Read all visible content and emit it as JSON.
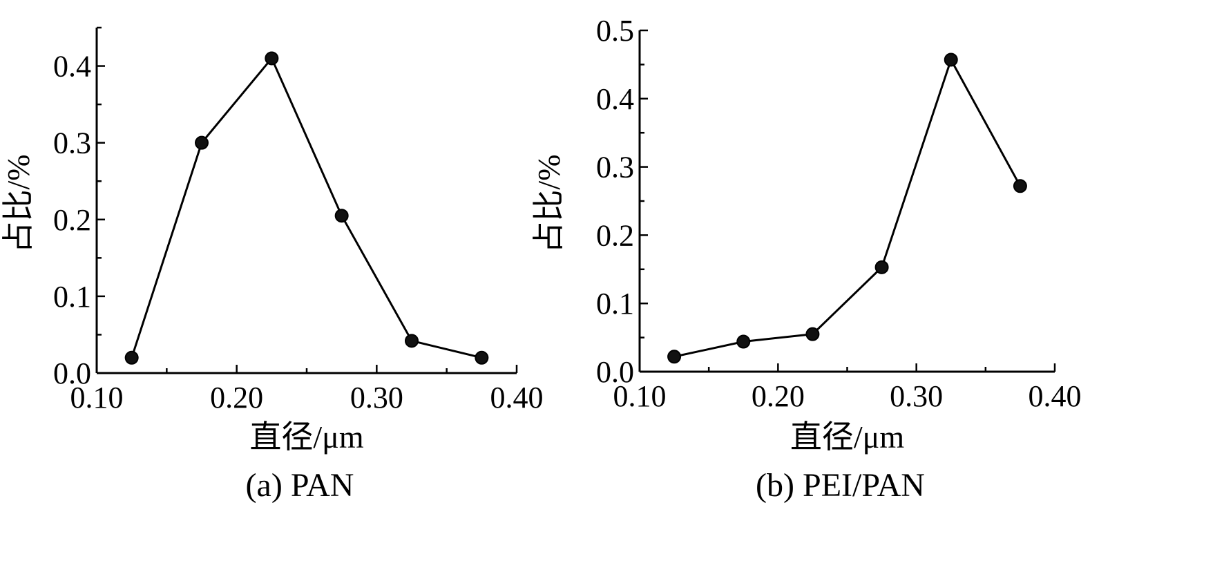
{
  "chart_data": [
    {
      "type": "line",
      "caption": "(a) PAN",
      "xlabel": "直径/μm",
      "ylabel": "占比/%",
      "xlim": [
        0.1,
        0.4
      ],
      "ylim": [
        0.0,
        0.45
      ],
      "xticks": [
        "0.10",
        "0.20",
        "0.30",
        "0.40"
      ],
      "yticks": [
        "0.0",
        "0.1",
        "0.2",
        "0.3",
        "0.4"
      ],
      "x": [
        0.125,
        0.175,
        0.225,
        0.275,
        0.325,
        0.375
      ],
      "y": [
        0.02,
        0.3,
        0.41,
        0.205,
        0.042,
        0.02
      ],
      "color": "#000000",
      "marker": "circle",
      "grid": false
    },
    {
      "type": "line",
      "caption": "(b) PEI/PAN",
      "xlabel": "直径/μm",
      "ylabel": "占比/%",
      "xlim": [
        0.1,
        0.4
      ],
      "ylim": [
        0.0,
        0.5
      ],
      "xticks": [
        "0.10",
        "0.20",
        "0.30",
        "0.40"
      ],
      "yticks": [
        "0.0",
        "0.1",
        "0.2",
        "0.3",
        "0.4",
        "0.5"
      ],
      "x": [
        0.125,
        0.175,
        0.225,
        0.275,
        0.325,
        0.375
      ],
      "y": [
        0.022,
        0.044,
        0.055,
        0.153,
        0.457,
        0.272
      ],
      "color": "#000000",
      "marker": "circle",
      "grid": false
    }
  ]
}
